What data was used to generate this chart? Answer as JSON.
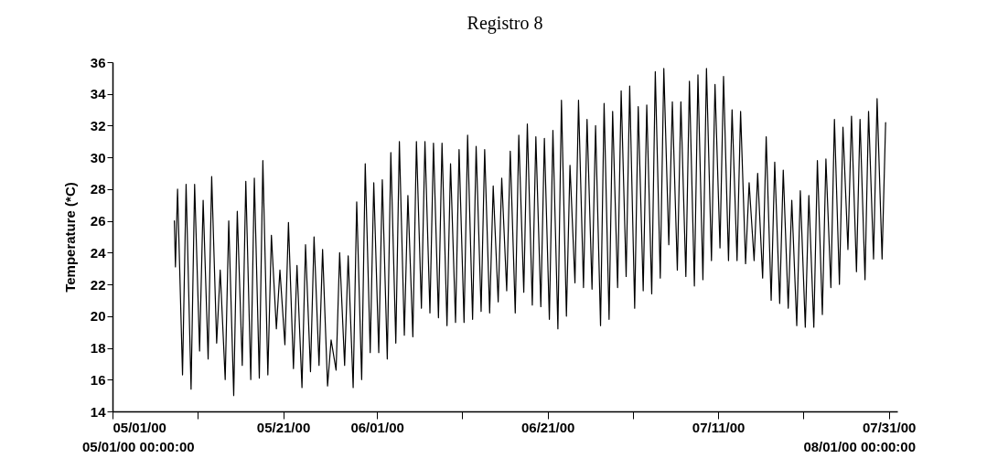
{
  "chart_data": {
    "type": "line",
    "title": "Registro 8",
    "ylabel": "Temperature (*C)",
    "annotations": [
      "05/01/00 00:00:00",
      "08/01/00 00:00:00"
    ],
    "xlim": [
      "2000-05-01",
      "2000-08-01"
    ],
    "xticks": [
      {
        "value": "2000-05-01",
        "label": "05/01/00"
      },
      {
        "value": "2000-05-11",
        "label": null
      },
      {
        "value": "2000-05-21",
        "label": "05/21/00"
      },
      {
        "value": "2000-06-01",
        "label": "06/01/00"
      },
      {
        "value": "2000-06-11",
        "label": null
      },
      {
        "value": "2000-06-21",
        "label": "06/21/00"
      },
      {
        "value": "2000-07-01",
        "label": null
      },
      {
        "value": "2000-07-11",
        "label": "07/11/00"
      },
      {
        "value": "2000-07-21",
        "label": null
      },
      {
        "value": "2000-07-31",
        "label": "07/31/00"
      }
    ],
    "ylim": [
      14,
      36
    ],
    "yticks": [
      14,
      16,
      18,
      20,
      22,
      24,
      26,
      28,
      30,
      32,
      34,
      36
    ],
    "grid": false,
    "marker": "none",
    "line_style": "solid",
    "series": [
      {
        "color": "#000000",
        "x": [
          "2000-05-08T06:00",
          "2000-05-08T09:00",
          "2000-05-08T15:00",
          "2000-05-09T05:00",
          "2000-05-09T15:00",
          "2000-05-10T05:00",
          "2000-05-10T15:00",
          "2000-05-11T05:00",
          "2000-05-11T15:00",
          "2000-05-12T05:00",
          "2000-05-12T15:00",
          "2000-05-13T05:00",
          "2000-05-13T15:00",
          "2000-05-14T05:00",
          "2000-05-14T15:00",
          "2000-05-15T05:00",
          "2000-05-15T15:00",
          "2000-05-16T05:00",
          "2000-05-16T15:00",
          "2000-05-17T05:00",
          "2000-05-17T15:00",
          "2000-05-18T05:00",
          "2000-05-18T15:00",
          "2000-05-19T05:00",
          "2000-05-19T15:00",
          "2000-05-20T05:00",
          "2000-05-20T15:00",
          "2000-05-21T05:00",
          "2000-05-21T15:00",
          "2000-05-22T05:00",
          "2000-05-22T15:00",
          "2000-05-23T05:00",
          "2000-05-23T15:00",
          "2000-05-24T05:00",
          "2000-05-24T15:00",
          "2000-05-25T05:00",
          "2000-05-25T15:00",
          "2000-05-26T05:00",
          "2000-05-26T15:00",
          "2000-05-27T05:00",
          "2000-05-27T15:00",
          "2000-05-28T05:00",
          "2000-05-28T15:00",
          "2000-05-29T05:00",
          "2000-05-29T15:00",
          "2000-05-30T05:00",
          "2000-05-30T15:00",
          "2000-05-31T05:00",
          "2000-05-31T15:00",
          "2000-06-01T05:00",
          "2000-06-01T15:00",
          "2000-06-02T05:00",
          "2000-06-02T15:00",
          "2000-06-03T05:00",
          "2000-06-03T15:00",
          "2000-06-04T05:00",
          "2000-06-04T15:00",
          "2000-06-05T05:00",
          "2000-06-05T15:00",
          "2000-06-06T05:00",
          "2000-06-06T15:00",
          "2000-06-07T05:00",
          "2000-06-07T15:00",
          "2000-06-08T05:00",
          "2000-06-08T15:00",
          "2000-06-09T05:00",
          "2000-06-09T15:00",
          "2000-06-10T05:00",
          "2000-06-10T15:00",
          "2000-06-11T05:00",
          "2000-06-11T15:00",
          "2000-06-12T05:00",
          "2000-06-12T15:00",
          "2000-06-13T05:00",
          "2000-06-13T15:00",
          "2000-06-14T05:00",
          "2000-06-14T15:00",
          "2000-06-15T05:00",
          "2000-06-15T15:00",
          "2000-06-16T05:00",
          "2000-06-16T15:00",
          "2000-06-17T05:00",
          "2000-06-17T15:00",
          "2000-06-18T05:00",
          "2000-06-18T15:00",
          "2000-06-19T05:00",
          "2000-06-19T15:00",
          "2000-06-20T05:00",
          "2000-06-20T15:00",
          "2000-06-21T05:00",
          "2000-06-21T15:00",
          "2000-06-22T05:00",
          "2000-06-22T15:00",
          "2000-06-23T05:00",
          "2000-06-23T15:00",
          "2000-06-24T05:00",
          "2000-06-24T15:00",
          "2000-06-25T05:00",
          "2000-06-25T15:00",
          "2000-06-26T05:00",
          "2000-06-26T15:00",
          "2000-06-27T05:00",
          "2000-06-27T15:00",
          "2000-06-28T05:00",
          "2000-06-28T15:00",
          "2000-06-29T05:00",
          "2000-06-29T15:00",
          "2000-06-30T05:00",
          "2000-06-30T15:00",
          "2000-07-01T05:00",
          "2000-07-01T15:00",
          "2000-07-02T05:00",
          "2000-07-02T15:00",
          "2000-07-03T05:00",
          "2000-07-03T15:00",
          "2000-07-04T05:00",
          "2000-07-04T15:00",
          "2000-07-05T05:00",
          "2000-07-05T15:00",
          "2000-07-06T05:00",
          "2000-07-06T15:00",
          "2000-07-07T05:00",
          "2000-07-07T15:00",
          "2000-07-08T05:00",
          "2000-07-08T15:00",
          "2000-07-09T05:00",
          "2000-07-09T15:00",
          "2000-07-10T05:00",
          "2000-07-10T15:00",
          "2000-07-11T05:00",
          "2000-07-11T15:00",
          "2000-07-12T05:00",
          "2000-07-12T15:00",
          "2000-07-13T05:00",
          "2000-07-13T15:00",
          "2000-07-14T05:00",
          "2000-07-14T15:00",
          "2000-07-15T05:00",
          "2000-07-15T15:00",
          "2000-07-16T05:00",
          "2000-07-16T15:00",
          "2000-07-17T05:00",
          "2000-07-17T15:00",
          "2000-07-18T05:00",
          "2000-07-18T15:00",
          "2000-07-19T05:00",
          "2000-07-19T15:00",
          "2000-07-20T05:00",
          "2000-07-20T15:00",
          "2000-07-21T05:00",
          "2000-07-21T15:00",
          "2000-07-22T05:00",
          "2000-07-22T15:00",
          "2000-07-23T05:00",
          "2000-07-23T15:00",
          "2000-07-24T05:00",
          "2000-07-24T15:00",
          "2000-07-25T05:00",
          "2000-07-25T15:00",
          "2000-07-26T05:00",
          "2000-07-26T15:00",
          "2000-07-27T05:00",
          "2000-07-27T15:00",
          "2000-07-28T05:00",
          "2000-07-28T15:00",
          "2000-07-29T05:00",
          "2000-07-29T15:00",
          "2000-07-30T05:00",
          "2000-07-30T15:00"
        ],
        "values": [
          26.0,
          23.1,
          28.0,
          16.3,
          28.3,
          15.4,
          28.3,
          17.8,
          27.3,
          17.3,
          28.8,
          18.3,
          22.9,
          16.0,
          26.0,
          15.0,
          26.6,
          16.9,
          28.5,
          16.0,
          28.7,
          16.1,
          29.8,
          16.3,
          25.1,
          19.2,
          22.9,
          18.2,
          25.9,
          16.7,
          23.2,
          15.5,
          24.5,
          16.5,
          25.0,
          16.9,
          24.2,
          15.6,
          18.5,
          16.6,
          24.0,
          16.9,
          23.8,
          15.5,
          27.2,
          16.0,
          29.6,
          17.7,
          28.4,
          17.7,
          28.6,
          17.3,
          30.3,
          18.3,
          31.0,
          18.8,
          27.6,
          18.7,
          31.0,
          20.5,
          31.0,
          20.2,
          30.9,
          19.9,
          30.9,
          19.4,
          29.6,
          19.6,
          30.5,
          19.6,
          31.4,
          19.8,
          30.7,
          20.3,
          30.5,
          20.2,
          28.2,
          20.9,
          28.7,
          21.6,
          30.4,
          20.2,
          31.4,
          21.5,
          32.1,
          20.7,
          31.3,
          20.6,
          31.2,
          19.8,
          31.7,
          19.2,
          33.6,
          20.0,
          29.5,
          22.1,
          33.6,
          21.8,
          32.4,
          21.7,
          32.0,
          19.4,
          33.4,
          19.8,
          32.9,
          21.8,
          34.2,
          22.5,
          34.5,
          20.5,
          33.2,
          21.6,
          33.3,
          21.4,
          35.4,
          22.4,
          35.6,
          24.5,
          33.5,
          22.9,
          33.5,
          22.5,
          34.8,
          21.9,
          35.2,
          22.3,
          35.6,
          23.5,
          34.6,
          24.3,
          35.1,
          23.5,
          33.0,
          23.5,
          32.9,
          23.3,
          28.4,
          23.5,
          29.0,
          22.4,
          31.3,
          21.0,
          29.7,
          20.8,
          29.2,
          20.5,
          27.3,
          19.4,
          27.9,
          19.3,
          27.6,
          19.3,
          29.8,
          20.1,
          29.9,
          21.8,
          32.4,
          22.0,
          31.9,
          24.2,
          32.6,
          22.8,
          32.4,
          22.3,
          32.9,
          23.6,
          33.7,
          23.6,
          32.2
        ]
      }
    ]
  }
}
